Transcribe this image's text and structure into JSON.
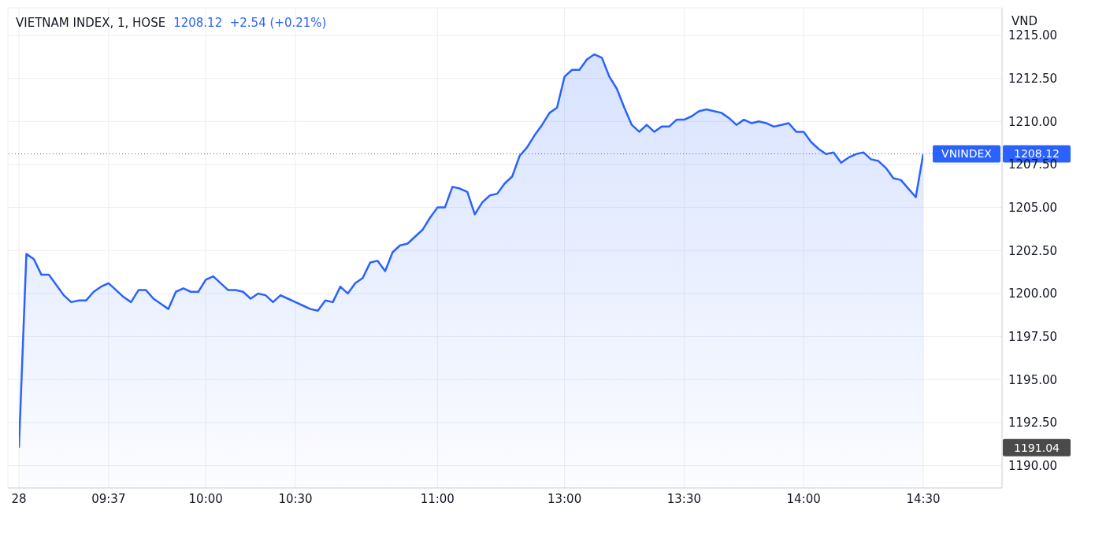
{
  "chart_data": {
    "type": "area",
    "title": "VIETNAM INDEX, 1, HOSE",
    "subtitle": "1208.12  +2.54 (+0.21%)",
    "ylabel": "VND",
    "categories": [
      "28",
      null,
      null,
      null,
      null,
      null,
      null,
      null,
      null,
      null,
      null,
      null,
      "09:37",
      null,
      null,
      null,
      null,
      null,
      null,
      null,
      null,
      null,
      null,
      null,
      null,
      "10:00",
      null,
      null,
      null,
      null,
      null,
      null,
      null,
      null,
      null,
      null,
      null,
      "10:30",
      null,
      null,
      null,
      null,
      null,
      null,
      null,
      null,
      null,
      null,
      null,
      null,
      null,
      null,
      null,
      null,
      null,
      null,
      "11:00",
      null,
      null,
      null,
      null,
      null,
      null,
      null,
      null,
      null,
      null,
      null,
      null,
      null,
      null,
      null,
      null,
      "13:00",
      null,
      null,
      null,
      null,
      null,
      null,
      null,
      null,
      null,
      null,
      null,
      null,
      null,
      null,
      null,
      "13:30",
      null,
      null,
      null,
      null,
      null,
      null,
      null,
      null,
      null,
      null,
      null,
      null,
      null,
      null,
      null,
      "14:00",
      null,
      null,
      null,
      null,
      null,
      null,
      null,
      null,
      null,
      null,
      null,
      null,
      null,
      null,
      null,
      "14:30"
    ],
    "annotations": [
      "1208.12",
      "1191.04"
    ],
    "series": [
      {
        "color": "#2962ff",
        "values": [
          1191.04,
          1202.3,
          1202.0,
          1201.1,
          1201.1,
          1200.5,
          1199.9,
          1199.5,
          1199.6,
          1199.6,
          1200.1,
          1200.4,
          1200.6,
          1200.2,
          1199.8,
          1199.5,
          1200.2,
          1200.2,
          1199.7,
          1199.4,
          1199.1,
          1200.1,
          1200.3,
          1200.1,
          1200.1,
          1200.8,
          1201.0,
          1200.6,
          1200.2,
          1200.2,
          1200.1,
          1199.7,
          1200.0,
          1199.9,
          1199.5,
          1199.9,
          1199.7,
          1199.5,
          1199.3,
          1199.1,
          1199.0,
          1199.6,
          1199.5,
          1200.4,
          1200.0,
          1200.6,
          1200.9,
          1201.8,
          1201.9,
          1201.3,
          1202.4,
          1202.8,
          1202.9,
          1203.3,
          1203.7,
          1204.4,
          1205.0,
          1205.0,
          1206.2,
          1206.1,
          1205.9,
          1204.6,
          1205.3,
          1205.7,
          1205.8,
          1206.4,
          1206.8,
          1208.0,
          1208.5,
          1209.2,
          1209.8,
          1210.5,
          1210.8,
          1212.6,
          1213.0,
          1213.0,
          1213.6,
          1213.9,
          1213.7,
          1212.6,
          1211.9,
          1210.8,
          1209.8,
          1209.4,
          1209.8,
          1209.4,
          1209.7,
          1209.7,
          1210.1,
          1210.1,
          1210.3,
          1210.6,
          1210.7,
          1210.6,
          1210.5,
          1210.2,
          1209.8,
          1210.1,
          1209.9,
          1210.0,
          1209.9,
          1209.7,
          1209.8,
          1209.9,
          1209.4,
          1209.4,
          1208.8,
          1208.4,
          1208.1,
          1208.2,
          1207.6,
          1207.9,
          1208.1,
          1208.2,
          1207.8,
          1207.7,
          1207.3,
          1206.7,
          1206.6,
          1206.1,
          1205.6,
          1208.12
        ]
      }
    ],
    "ylim": [
      1188.7,
      1216.6
    ],
    "yticks": [
      {
        "value": 1190,
        "label": "1190.00"
      },
      {
        "value": 1192.5,
        "label": "1192.50"
      },
      {
        "value": 1195,
        "label": "1195.00"
      },
      {
        "value": 1197.5,
        "label": "1197.50"
      },
      {
        "value": 1200,
        "label": "1200.00"
      },
      {
        "value": 1202.5,
        "label": "1202.50"
      },
      {
        "value": 1205,
        "label": "1205.00"
      },
      {
        "value": 1207.5,
        "label": "1207.50"
      },
      {
        "value": 1210,
        "label": "1210.00"
      },
      {
        "value": 1212.5,
        "label": "1212.50"
      },
      {
        "value": 1215,
        "label": "1215.00"
      }
    ],
    "ref_lines": [
      {
        "axis": "y",
        "value": 1208.12,
        "label": "VNINDEX",
        "color": "#2962ff",
        "line_style": "dotted"
      }
    ],
    "grid": true
  }
}
